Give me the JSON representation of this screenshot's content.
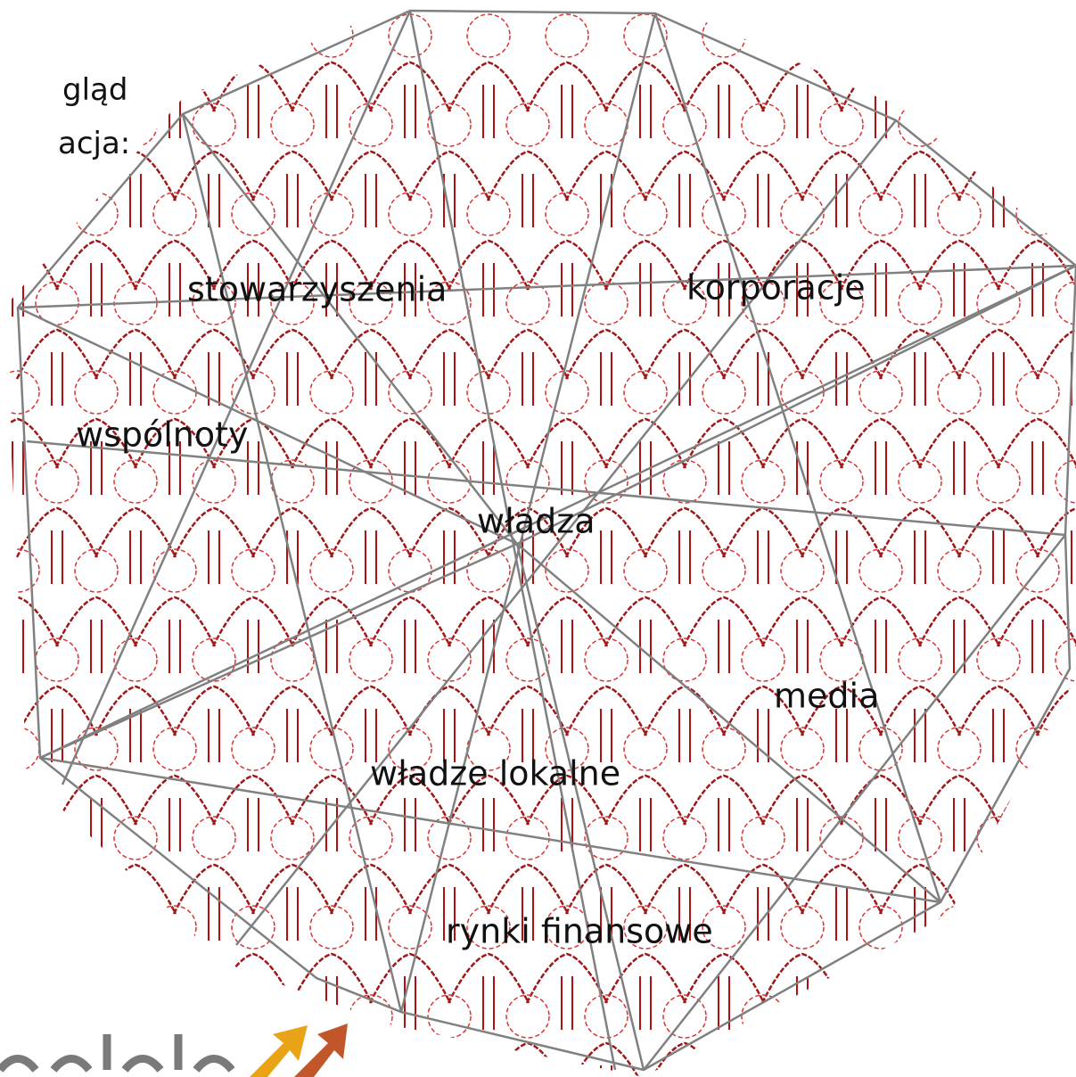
{
  "header": {
    "lines": [
      "gląd",
      "acja:"
    ]
  },
  "nodes": [
    {
      "label": "stowarzyszenia"
    },
    {
      "label": "korporacje"
    },
    {
      "label": "wspólnoty"
    },
    {
      "label": "władza"
    },
    {
      "label": "media"
    },
    {
      "label": "władze lokalne"
    },
    {
      "label": "rynki finansowe"
    }
  ]
}
